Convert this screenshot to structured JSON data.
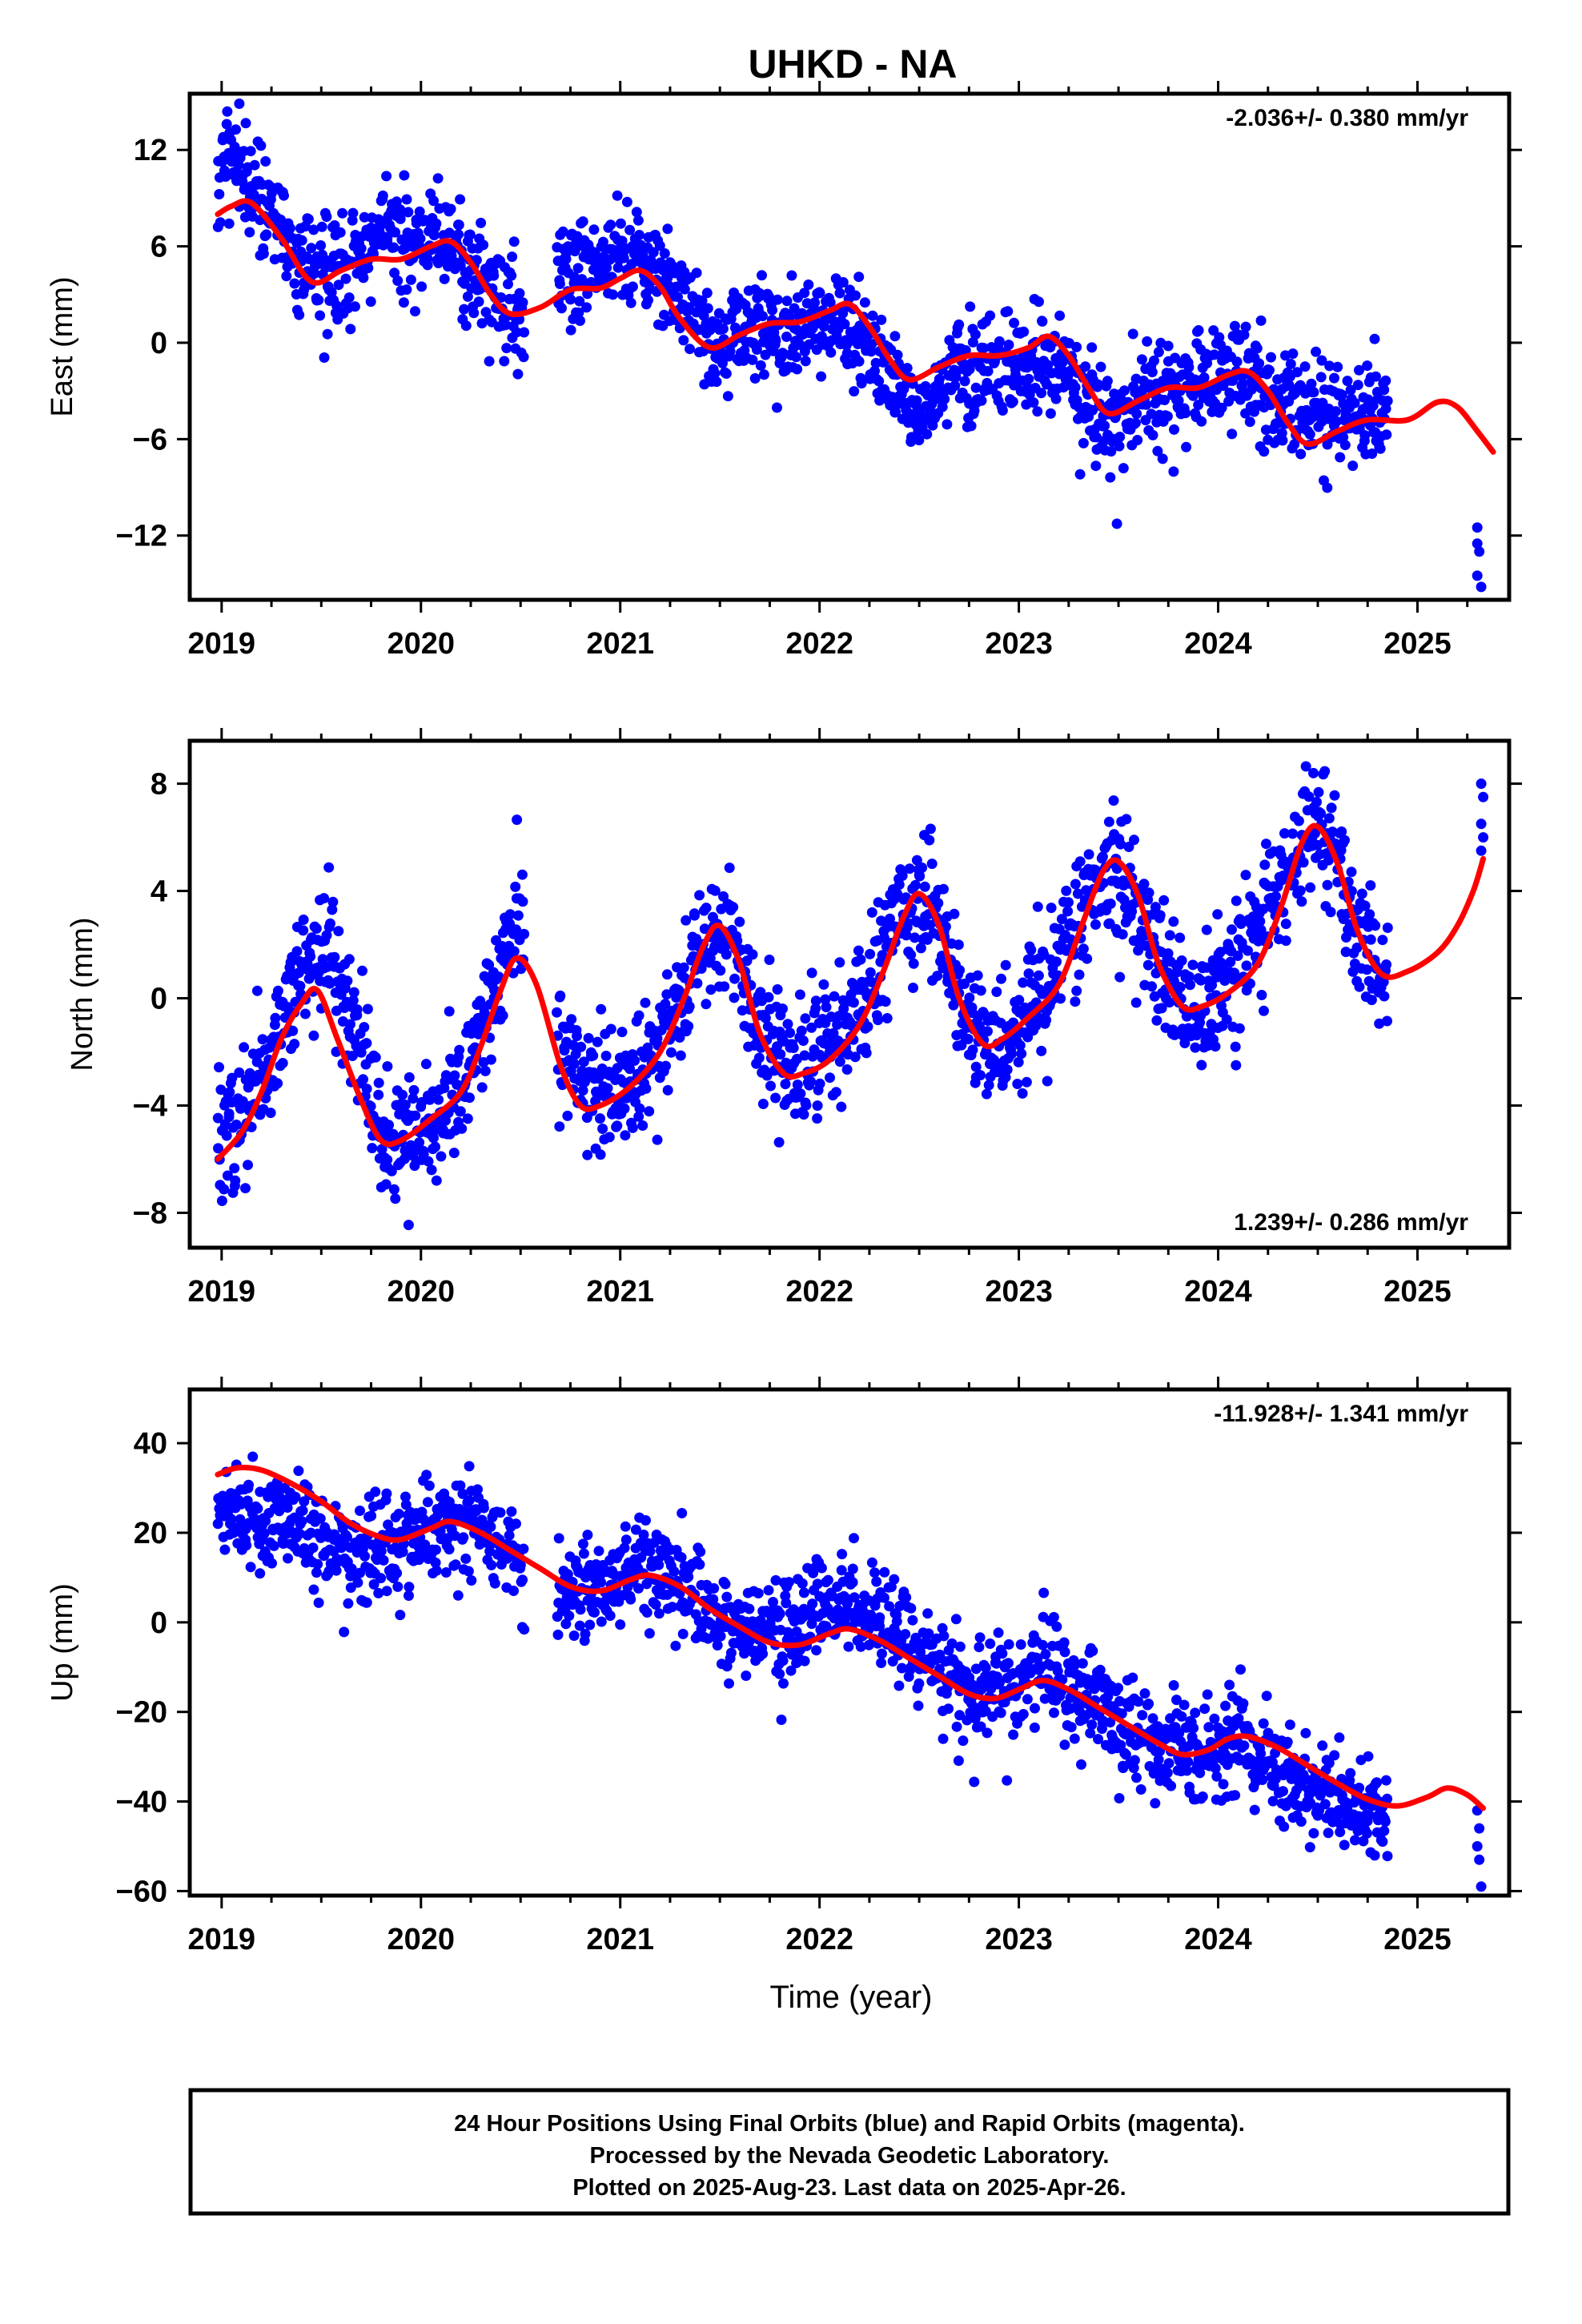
{
  "figure": {
    "title": "UHKD - NA",
    "xlabel": "Time (year)",
    "colors": {
      "final_orbits": "#0000ff",
      "model_fit": "#ff0000",
      "frame": "#000000"
    },
    "footer": [
      "24 Hour Positions Using Final Orbits (blue) and Rapid Orbits (magenta).",
      "Processed by the Nevada Geodetic Laboratory.",
      "Plotted on 2025-Aug-23. Last data on 2025-Apr-26."
    ]
  },
  "chart_data": [
    {
      "type": "scatter",
      "component": "east",
      "ylabel": "East (mm)",
      "rate": "-2.036+/- 0.380 mm/yr",
      "rate_position": "top-right",
      "xlim": [
        2018.84,
        2025.46
      ],
      "ylim": [
        -16,
        15.5
      ],
      "xticks": [
        2019,
        2020,
        2021,
        2022,
        2023,
        2024,
        2025
      ],
      "yticks": [
        12,
        6,
        0,
        -6,
        -12
      ],
      "data_anchor_points": [
        [
          2018.98,
          10.5
        ],
        [
          2019.1,
          11
        ],
        [
          2019.25,
          8
        ],
        [
          2019.45,
          4.5
        ],
        [
          2019.6,
          4
        ],
        [
          2019.8,
          7
        ],
        [
          2020.0,
          6.5
        ],
        [
          2020.15,
          6
        ],
        [
          2020.35,
          3
        ],
        [
          2020.5,
          2
        ],
        [
          2020.7,
          4
        ],
        [
          2020.9,
          5
        ],
        [
          2021.1,
          5.5
        ],
        [
          2021.3,
          3
        ],
        [
          2021.5,
          0
        ],
        [
          2021.7,
          1
        ],
        [
          2021.9,
          0.5
        ],
        [
          2022.1,
          1.5
        ],
        [
          2022.3,
          -1
        ],
        [
          2022.5,
          -5
        ],
        [
          2022.7,
          -1
        ],
        [
          2022.9,
          -1.5
        ],
        [
          2023.1,
          -1
        ],
        [
          2023.3,
          -3
        ],
        [
          2023.5,
          -5
        ],
        [
          2023.7,
          -3
        ],
        [
          2023.9,
          -2.5
        ],
        [
          2024.1,
          -2
        ],
        [
          2024.3,
          -3.5
        ],
        [
          2024.5,
          -4.5
        ],
        [
          2024.7,
          -4
        ],
        [
          2024.85,
          -4.5
        ]
      ],
      "tail_points": [
        [
          2025.3,
          -11.5
        ],
        [
          2025.3,
          -12.5
        ],
        [
          2025.31,
          -13
        ],
        [
          2025.3,
          -14.5
        ],
        [
          2025.32,
          -15.2
        ]
      ],
      "model": [
        [
          2018.98,
          8
        ],
        [
          2019.05,
          8.5
        ],
        [
          2019.15,
          8.7
        ],
        [
          2019.3,
          6.5
        ],
        [
          2019.45,
          3.8
        ],
        [
          2019.6,
          4.5
        ],
        [
          2019.75,
          5.2
        ],
        [
          2019.9,
          5.2
        ],
        [
          2020.05,
          6
        ],
        [
          2020.15,
          6.3
        ],
        [
          2020.25,
          5
        ],
        [
          2020.35,
          3
        ],
        [
          2020.45,
          1.8
        ],
        [
          2020.6,
          2.2
        ],
        [
          2020.75,
          3.3
        ],
        [
          2020.9,
          3.4
        ],
        [
          2021.0,
          4
        ],
        [
          2021.1,
          4.5
        ],
        [
          2021.2,
          3.5
        ],
        [
          2021.3,
          1.5
        ],
        [
          2021.45,
          -0.3
        ],
        [
          2021.6,
          0.5
        ],
        [
          2021.75,
          1.2
        ],
        [
          2021.9,
          1.3
        ],
        [
          2022.05,
          2
        ],
        [
          2022.15,
          2.4
        ],
        [
          2022.25,
          1
        ],
        [
          2022.35,
          -1
        ],
        [
          2022.45,
          -2.3
        ],
        [
          2022.6,
          -1.5
        ],
        [
          2022.75,
          -0.8
        ],
        [
          2022.9,
          -0.8
        ],
        [
          2023.05,
          -0.3
        ],
        [
          2023.15,
          0.4
        ],
        [
          2023.25,
          -0.8
        ],
        [
          2023.35,
          -2.8
        ],
        [
          2023.45,
          -4.4
        ],
        [
          2023.6,
          -3.6
        ],
        [
          2023.75,
          -2.8
        ],
        [
          2023.9,
          -2.8
        ],
        [
          2024.05,
          -2
        ],
        [
          2024.15,
          -1.8
        ],
        [
          2024.25,
          -3
        ],
        [
          2024.35,
          -5
        ],
        [
          2024.45,
          -6.3
        ],
        [
          2024.6,
          -5.5
        ],
        [
          2024.75,
          -4.8
        ],
        [
          2024.95,
          -4.8
        ],
        [
          2025.1,
          -3.7
        ],
        [
          2025.2,
          -4
        ],
        [
          2025.3,
          -5.5
        ],
        [
          2025.38,
          -6.8
        ]
      ]
    },
    {
      "type": "scatter",
      "component": "north",
      "ylabel": "North (mm)",
      "rate": "1.239+/- 0.286 mm/yr",
      "rate_position": "bottom-right",
      "xlim": [
        2018.84,
        2025.46
      ],
      "ylim": [
        -9.3,
        9.6
      ],
      "xticks": [
        2019,
        2020,
        2021,
        2022,
        2023,
        2024,
        2025
      ],
      "yticks": [
        8,
        4,
        0,
        -4,
        -8
      ],
      "data_anchor_points": [
        [
          2018.98,
          -5
        ],
        [
          2019.1,
          -4.5
        ],
        [
          2019.25,
          -2.5
        ],
        [
          2019.4,
          1
        ],
        [
          2019.55,
          1.5
        ],
        [
          2019.7,
          -2.5
        ],
        [
          2019.85,
          -5.5
        ],
        [
          2020.0,
          -5.5
        ],
        [
          2020.15,
          -4
        ],
        [
          2020.3,
          -1.5
        ],
        [
          2020.45,
          2
        ],
        [
          2020.55,
          2.5
        ],
        [
          2020.7,
          -2
        ],
        [
          2020.85,
          -3.5
        ],
        [
          2021.0,
          -3.5
        ],
        [
          2021.15,
          -2.5
        ],
        [
          2021.3,
          0
        ],
        [
          2021.45,
          2
        ],
        [
          2021.55,
          2.5
        ],
        [
          2021.7,
          -1
        ],
        [
          2021.85,
          -2.5
        ],
        [
          2022.0,
          -2
        ],
        [
          2022.15,
          -1
        ],
        [
          2022.3,
          1.5
        ],
        [
          2022.45,
          3.5
        ],
        [
          2022.55,
          3.5
        ],
        [
          2022.7,
          0
        ],
        [
          2022.85,
          -2
        ],
        [
          2023.0,
          -1
        ],
        [
          2023.15,
          0.5
        ],
        [
          2023.3,
          3
        ],
        [
          2023.45,
          4.5
        ],
        [
          2023.55,
          4.5
        ],
        [
          2023.7,
          1
        ],
        [
          2023.85,
          -0.5
        ],
        [
          2024.0,
          0
        ],
        [
          2024.15,
          1.5
        ],
        [
          2024.3,
          4
        ],
        [
          2024.45,
          6
        ],
        [
          2024.55,
          6
        ],
        [
          2024.7,
          2.5
        ],
        [
          2024.85,
          1
        ]
      ],
      "tail_points": [
        [
          2025.32,
          8
        ],
        [
          2025.33,
          7.5
        ],
        [
          2025.32,
          6.5
        ],
        [
          2025.33,
          6
        ],
        [
          2025.32,
          5.5
        ]
      ],
      "model": [
        [
          2018.98,
          -6
        ],
        [
          2019.1,
          -5
        ],
        [
          2019.2,
          -3.5
        ],
        [
          2019.3,
          -1.5
        ],
        [
          2019.4,
          -0.2
        ],
        [
          2019.48,
          0.3
        ],
        [
          2019.58,
          -1.5
        ],
        [
          2019.7,
          -3.8
        ],
        [
          2019.8,
          -5.3
        ],
        [
          2019.9,
          -5.3
        ],
        [
          2020.05,
          -4.5
        ],
        [
          2020.2,
          -3.5
        ],
        [
          2020.3,
          -1.8
        ],
        [
          2020.4,
          0.3
        ],
        [
          2020.48,
          1.5
        ],
        [
          2020.58,
          0.5
        ],
        [
          2020.7,
          -2.5
        ],
        [
          2020.8,
          -4
        ],
        [
          2020.9,
          -4
        ],
        [
          2021.05,
          -3.3
        ],
        [
          2021.2,
          -2
        ],
        [
          2021.32,
          0
        ],
        [
          2021.42,
          2
        ],
        [
          2021.5,
          2.7
        ],
        [
          2021.6,
          1.3
        ],
        [
          2021.7,
          -1.3
        ],
        [
          2021.82,
          -2.8
        ],
        [
          2021.92,
          -2.8
        ],
        [
          2022.05,
          -2.3
        ],
        [
          2022.2,
          -1
        ],
        [
          2022.32,
          1
        ],
        [
          2022.42,
          3
        ],
        [
          2022.5,
          3.9
        ],
        [
          2022.6,
          2.7
        ],
        [
          2022.7,
          0
        ],
        [
          2022.82,
          -1.7
        ],
        [
          2022.92,
          -1.5
        ],
        [
          2023.05,
          -0.7
        ],
        [
          2023.2,
          0.5
        ],
        [
          2023.32,
          2.8
        ],
        [
          2023.42,
          4.7
        ],
        [
          2023.5,
          5.1
        ],
        [
          2023.6,
          3.8
        ],
        [
          2023.7,
          1.3
        ],
        [
          2023.82,
          -0.3
        ],
        [
          2023.92,
          -0.3
        ],
        [
          2024.05,
          0.2
        ],
        [
          2024.2,
          1.3
        ],
        [
          2024.32,
          3.5
        ],
        [
          2024.42,
          5.8
        ],
        [
          2024.5,
          6.4
        ],
        [
          2024.6,
          5
        ],
        [
          2024.7,
          2.5
        ],
        [
          2024.82,
          0.9
        ],
        [
          2024.95,
          1
        ],
        [
          2025.1,
          1.7
        ],
        [
          2025.2,
          2.7
        ],
        [
          2025.28,
          4
        ],
        [
          2025.33,
          5.2
        ]
      ]
    },
    {
      "type": "scatter",
      "component": "up",
      "ylabel": "Up (mm)",
      "rate": "-11.928+/- 1.341 mm/yr",
      "rate_position": "top-right",
      "xlim": [
        2018.84,
        2025.46
      ],
      "ylim": [
        -61,
        52
      ],
      "xticks": [
        2019,
        2020,
        2021,
        2022,
        2023,
        2024,
        2025
      ],
      "yticks": [
        40,
        20,
        0,
        -20,
        -40,
        -60
      ],
      "data_anchor_points": [
        [
          2018.98,
          25
        ],
        [
          2019.1,
          25
        ],
        [
          2019.3,
          22
        ],
        [
          2019.5,
          17
        ],
        [
          2019.7,
          15
        ],
        [
          2019.9,
          17
        ],
        [
          2020.1,
          22
        ],
        [
          2020.3,
          20
        ],
        [
          2020.5,
          12
        ],
        [
          2020.7,
          7
        ],
        [
          2020.9,
          8
        ],
        [
          2021.1,
          13
        ],
        [
          2021.3,
          10
        ],
        [
          2021.5,
          2
        ],
        [
          2021.7,
          -2
        ],
        [
          2021.9,
          1
        ],
        [
          2022.1,
          5
        ],
        [
          2022.3,
          2
        ],
        [
          2022.5,
          -8
        ],
        [
          2022.7,
          -14
        ],
        [
          2022.9,
          -15
        ],
        [
          2023.1,
          -10
        ],
        [
          2023.3,
          -15
        ],
        [
          2023.5,
          -22
        ],
        [
          2023.7,
          -28
        ],
        [
          2023.9,
          -30
        ],
        [
          2024.1,
          -28
        ],
        [
          2024.3,
          -32
        ],
        [
          2024.5,
          -38
        ],
        [
          2024.7,
          -42
        ],
        [
          2024.85,
          -42
        ]
      ],
      "tail_points": [
        [
          2025.3,
          -42
        ],
        [
          2025.31,
          -46
        ],
        [
          2025.3,
          -50
        ],
        [
          2025.31,
          -53
        ],
        [
          2025.32,
          -59
        ]
      ],
      "model": [
        [
          2018.98,
          33
        ],
        [
          2019.08,
          34.5
        ],
        [
          2019.2,
          34
        ],
        [
          2019.35,
          31
        ],
        [
          2019.5,
          27
        ],
        [
          2019.65,
          22
        ],
        [
          2019.8,
          19
        ],
        [
          2019.9,
          18.5
        ],
        [
          2020.05,
          21
        ],
        [
          2020.15,
          22.5
        ],
        [
          2020.3,
          20
        ],
        [
          2020.45,
          16
        ],
        [
          2020.6,
          12
        ],
        [
          2020.75,
          8
        ],
        [
          2020.9,
          7
        ],
        [
          2021.05,
          9.5
        ],
        [
          2021.15,
          10.5
        ],
        [
          2021.3,
          8
        ],
        [
          2021.45,
          3
        ],
        [
          2021.6,
          -1
        ],
        [
          2021.75,
          -4.5
        ],
        [
          2021.9,
          -5
        ],
        [
          2022.05,
          -2.5
        ],
        [
          2022.15,
          -1.5
        ],
        [
          2022.3,
          -4
        ],
        [
          2022.45,
          -8
        ],
        [
          2022.6,
          -12
        ],
        [
          2022.75,
          -16
        ],
        [
          2022.88,
          -17
        ],
        [
          2023.0,
          -15
        ],
        [
          2023.12,
          -13
        ],
        [
          2023.25,
          -15
        ],
        [
          2023.4,
          -19
        ],
        [
          2023.55,
          -23
        ],
        [
          2023.7,
          -27
        ],
        [
          2023.82,
          -29.5
        ],
        [
          2023.95,
          -28.5
        ],
        [
          2024.05,
          -26
        ],
        [
          2024.15,
          -25.5
        ],
        [
          2024.3,
          -28
        ],
        [
          2024.45,
          -32
        ],
        [
          2024.6,
          -36
        ],
        [
          2024.75,
          -39.5
        ],
        [
          2024.9,
          -41
        ],
        [
          2025.05,
          -39
        ],
        [
          2025.15,
          -37
        ],
        [
          2025.25,
          -38.5
        ],
        [
          2025.33,
          -41.5
        ]
      ]
    }
  ]
}
